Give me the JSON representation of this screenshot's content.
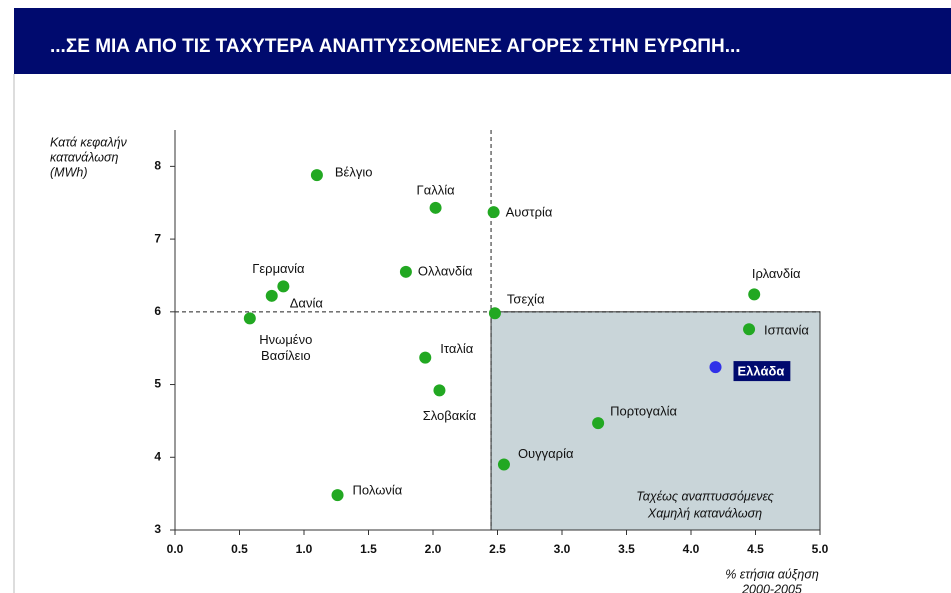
{
  "header": {
    "title": "...ΣΕ ΜΙΑ ΑΠΟ ΤΙΣ ΤΑΧΥΤΕΡΑ ΑΝΑΠΤΥΣΣΟΜΕΝΕΣ ΑΓΟΡΕΣ ΣΤΗΝ ΕΥΡΩΠΗ..."
  },
  "chart_data": {
    "type": "scatter",
    "y_label": [
      "Κατά κεφαλήν",
      "κατανάλωση",
      "(MWh)"
    ],
    "x_label": [
      "% ετήσια αύξηση",
      "2000-2005"
    ],
    "region_label": [
      "Ταχέως αναπτυσσόμενες",
      "Χαμηλή κατανάλωση"
    ],
    "point_labels": [
      "Βέλγιο",
      "Γαλλία",
      "Αυστρία",
      "Ολλανδία",
      "Γερμανία",
      "Δανία",
      [
        "Ηνωμένο",
        "Βασίλειο"
      ],
      "Τσεχία",
      "Ιρλανδία",
      "Ισπανία",
      "Ελλάδα",
      "Ιταλία",
      "Σλοβακία",
      "Πορτογαλία",
      "Ουγγαρία",
      "Πολωνία"
    ],
    "x": [
      1.1,
      2.02,
      2.47,
      1.79,
      0.84,
      0.75,
      0.58,
      2.48,
      4.49,
      4.45,
      4.19,
      1.94,
      2.05,
      3.28,
      2.55,
      1.26
    ],
    "values": [
      7.88,
      7.43,
      7.37,
      6.55,
      6.35,
      6.22,
      5.91,
      5.98,
      6.24,
      5.76,
      5.24,
      5.37,
      4.92,
      4.47,
      3.9,
      3.48
    ],
    "color": "#22a822",
    "point_colors": [
      "#22a822",
      "#22a822",
      "#22a822",
      "#22a822",
      "#22a822",
      "#22a822",
      "#22a822",
      "#22a822",
      "#22a822",
      "#22a822",
      "#3030e8",
      "#22a822",
      "#22a822",
      "#22a822",
      "#22a822",
      "#22a822"
    ],
    "reference_lines": {
      "x": 2.45,
      "y": 6
    },
    "region_color": "#c9d5d9",
    "xlim": [
      0,
      5
    ],
    "ylim": [
      3,
      8.5
    ],
    "xticks": [
      {
        "value": 0,
        "label": "0.0"
      },
      {
        "value": 0.5,
        "label": "0.5"
      },
      {
        "value": 1,
        "label": "1.0"
      },
      {
        "value": 1.5,
        "label": "1.5"
      },
      {
        "value": 2,
        "label": "2.0"
      },
      {
        "value": 2.5,
        "label": "2.5"
      },
      {
        "value": 3,
        "label": "3.0"
      },
      {
        "value": 3.5,
        "label": "3.5"
      },
      {
        "value": 4,
        "label": "4.0"
      },
      {
        "value": 4.5,
        "label": "4.5"
      },
      {
        "value": 5,
        "label": "5.0"
      }
    ],
    "yticks": [
      3,
      4,
      5,
      6,
      7,
      8
    ]
  }
}
